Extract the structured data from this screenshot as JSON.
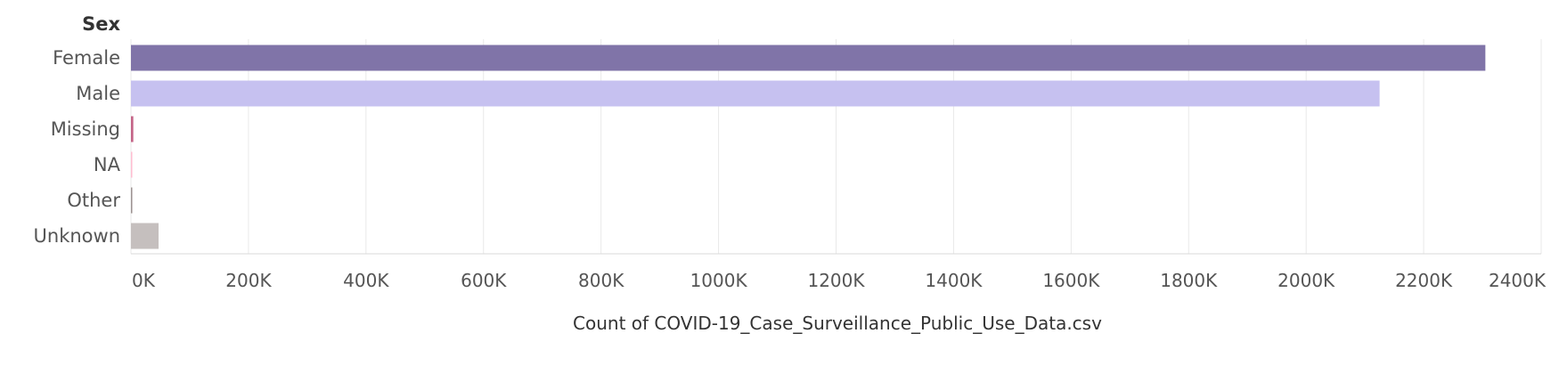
{
  "chart_data": {
    "type": "bar",
    "orientation": "horizontal",
    "row_header": "Sex",
    "categories": [
      "Female",
      "Male",
      "Missing",
      "NA",
      "Other",
      "Unknown"
    ],
    "values": [
      2305000,
      2125000,
      4000,
      800,
      400,
      47000
    ],
    "colors": [
      "#8074a8",
      "#c6c1f0",
      "#c46487",
      "#ffbed1",
      "#9c9290",
      "#c5bfbe"
    ],
    "xlabel": "Count of COVID-19_Case_Surveillance_Public_Use_Data.csv",
    "xlim": [
      0,
      2400000
    ],
    "x_ticks": [
      {
        "value": 0,
        "label": "0K"
      },
      {
        "value": 200000,
        "label": "200K"
      },
      {
        "value": 400000,
        "label": "400K"
      },
      {
        "value": 600000,
        "label": "600K"
      },
      {
        "value": 800000,
        "label": "800K"
      },
      {
        "value": 1000000,
        "label": "1000K"
      },
      {
        "value": 1200000,
        "label": "1200K"
      },
      {
        "value": 1400000,
        "label": "1400K"
      },
      {
        "value": 1600000,
        "label": "1600K"
      },
      {
        "value": 1800000,
        "label": "1800K"
      },
      {
        "value": 2000000,
        "label": "2000K"
      },
      {
        "value": 2200000,
        "label": "2200K"
      },
      {
        "value": 2400000,
        "label": "2400K"
      }
    ],
    "grid": true,
    "legend": "none"
  }
}
